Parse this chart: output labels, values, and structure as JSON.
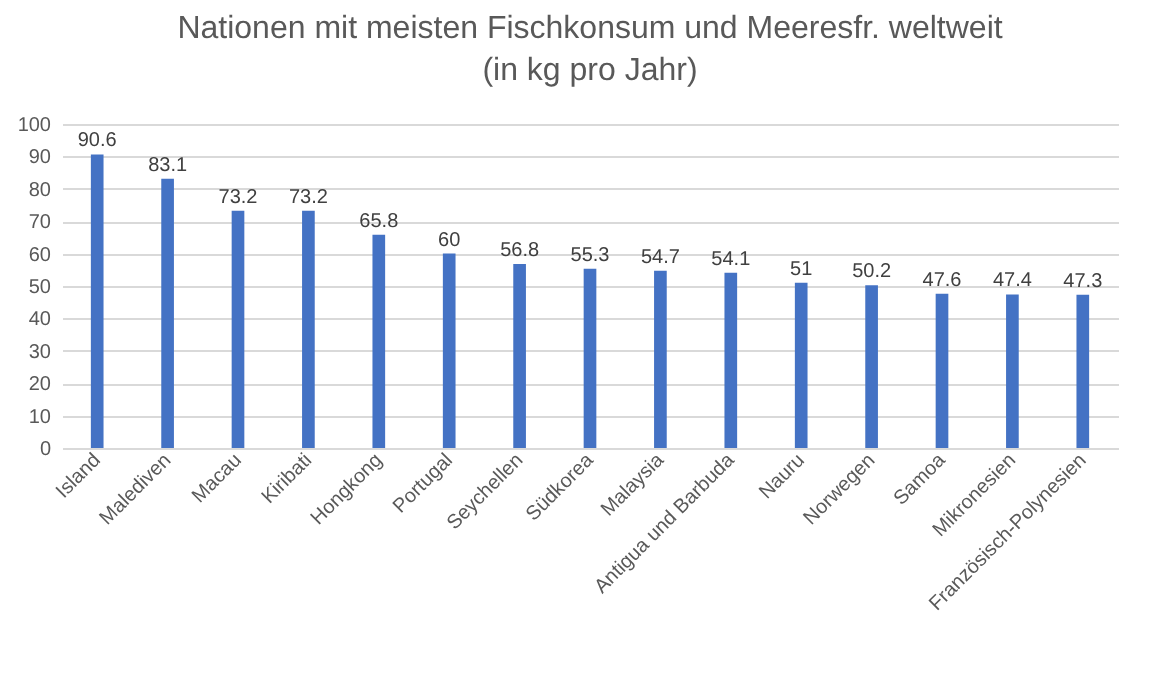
{
  "chart_data": {
    "type": "bar",
    "title": "Nationen mit meisten Fischkonsum und Meeresfr. weltweit\n(in kg pro Jahr)",
    "categories": [
      "Island",
      "Malediven",
      "Macau",
      "Kiribati",
      "Hongkong",
      "Portugal",
      "Seychellen",
      "Südkorea",
      "Malaysia",
      "Antigua und Barbuda",
      "Nauru",
      "Norwegen",
      "Samoa",
      "Mikronesien",
      "Französisch-Polynesien"
    ],
    "values": [
      90.6,
      83.1,
      73.2,
      73.2,
      65.8,
      60,
      56.8,
      55.3,
      54.7,
      54.1,
      51,
      50.2,
      47.6,
      47.4,
      47.3
    ],
    "color": "#4472c4",
    "ylim": [
      0,
      100
    ],
    "yticks": [
      0,
      10,
      20,
      30,
      40,
      50,
      60,
      70,
      80,
      90,
      100
    ],
    "grid": true,
    "data_labels": true
  }
}
